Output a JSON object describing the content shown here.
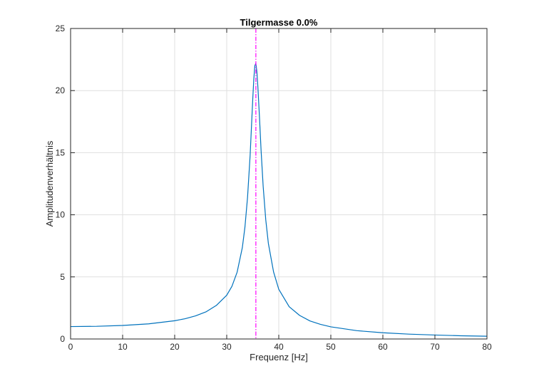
{
  "chart_data": {
    "type": "line",
    "title": "Tilgermasse 0.0%",
    "xlabel": "Frequenz [Hz]",
    "ylabel": "Amplitudenverhältnis",
    "xlim": [
      0,
      80
    ],
    "ylim": [
      0,
      25
    ],
    "xticks": [
      0,
      10,
      20,
      30,
      40,
      50,
      60,
      70,
      80
    ],
    "yticks": [
      0,
      5,
      10,
      15,
      20,
      25
    ],
    "grid": true,
    "series": [
      {
        "color": "#0072BD",
        "x": [
          0,
          5,
          10,
          15,
          20,
          22,
          24,
          26,
          28,
          30,
          31,
          32,
          33,
          33.5,
          34,
          34.5,
          35,
          35.2,
          35.4,
          35.6,
          35.8,
          36,
          36.3,
          36.6,
          37,
          37.5,
          38,
          39,
          40,
          42,
          44,
          46,
          48,
          50,
          55,
          60,
          65,
          70,
          75,
          80
        ],
        "y": [
          1.0,
          1.02,
          1.09,
          1.22,
          1.47,
          1.63,
          1.86,
          2.18,
          2.7,
          3.52,
          4.24,
          5.38,
          7.36,
          9.01,
          11.4,
          14.8,
          19.3,
          20.9,
          22.0,
          22.2,
          21.5,
          20.2,
          17.8,
          15.2,
          12.3,
          9.6,
          7.7,
          5.4,
          4.0,
          2.6,
          1.9,
          1.45,
          1.18,
          0.98,
          0.67,
          0.5,
          0.39,
          0.32,
          0.26,
          0.22
        ]
      }
    ],
    "vline": {
      "x": 35.6,
      "color": "#FF00FF",
      "style": "dash-dot"
    }
  }
}
